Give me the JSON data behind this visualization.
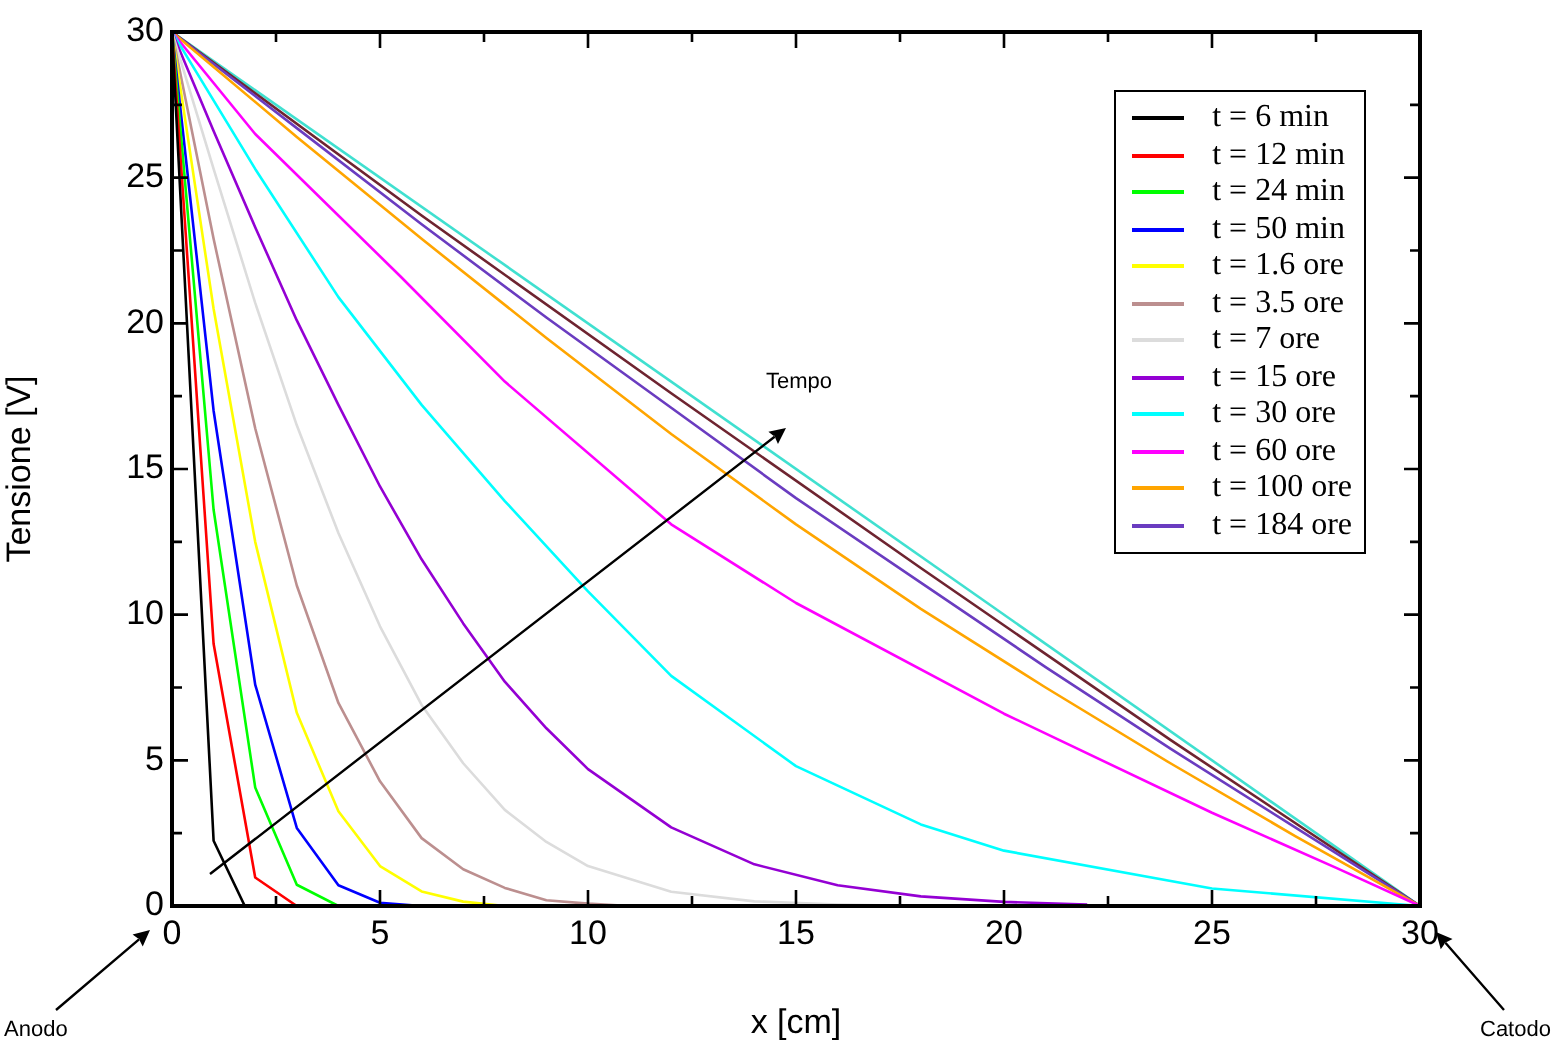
{
  "chart_data": {
    "type": "line",
    "xlabel": "x [cm]",
    "ylabel": "Tensione [V]",
    "xlim": [
      0,
      30
    ],
    "ylim": [
      0,
      30
    ],
    "xticks": [
      0,
      {
        "value": 2.5,
        "label": null
      },
      5,
      {
        "value": 7.5,
        "label": null
      },
      10,
      {
        "value": 12.5,
        "label": null
      },
      15,
      {
        "value": 17.5,
        "label": null
      },
      20,
      {
        "value": 22.5,
        "label": null
      },
      25,
      {
        "value": 27.5,
        "label": null
      },
      30
    ],
    "yticks": [
      0,
      {
        "value": 2.5,
        "label": null
      },
      5,
      {
        "value": 7.5,
        "label": null
      },
      10,
      {
        "value": 12.5,
        "label": null
      },
      15,
      {
        "value": 17.5,
        "label": null
      },
      20,
      {
        "value": 22.5,
        "label": null
      },
      25,
      {
        "value": 27.5,
        "label": null
      },
      30
    ],
    "grid": false,
    "legend": "top right",
    "marker": "none",
    "line_style": "solid",
    "annotations": [
      "Tempo",
      "Anodo",
      "Catodo"
    ],
    "series": [
      {
        "name": "t = 6 min",
        "color": "#000000",
        "x": [
          0,
          1,
          1.75
        ],
        "values": [
          30,
          2.24,
          0
        ]
      },
      {
        "name": "t = 12 min",
        "color": "#ff0000",
        "x": [
          0,
          1,
          2,
          3
        ],
        "values": [
          30,
          9.0,
          0.98,
          0
        ]
      },
      {
        "name": "t = 24 min",
        "color": "#00ff00",
        "x": [
          0,
          1,
          2,
          3,
          4
        ],
        "values": [
          30,
          13.6,
          4.07,
          0.73,
          0
        ]
      },
      {
        "name": "t = 50 min",
        "color": "#0000ff",
        "x": [
          0,
          1,
          2,
          3,
          4,
          5,
          6
        ],
        "values": [
          30,
          17.0,
          7.6,
          2.68,
          0.71,
          0.11,
          0
        ]
      },
      {
        "name": "t = 1.6 ore",
        "color": "#ffff00",
        "x": [
          0,
          1,
          2,
          3,
          4,
          5,
          6,
          7,
          8
        ],
        "values": [
          30,
          20.5,
          12.5,
          6.63,
          3.25,
          1.37,
          0.5,
          0.15,
          0
        ]
      },
      {
        "name": "t = 3.5 ore",
        "color": "#bc8f8f",
        "x": [
          0,
          1,
          2,
          3,
          4,
          5,
          6,
          7,
          8,
          9,
          10,
          11
        ],
        "values": [
          30,
          22.9,
          16.4,
          11.0,
          6.97,
          4.28,
          2.33,
          1.26,
          0.62,
          0.2,
          0.08,
          0
        ]
      },
      {
        "name": "t = 7 ore",
        "color": "#dcdcdc",
        "x": [
          0,
          1,
          2,
          3,
          4,
          5,
          6,
          7,
          8,
          9,
          10,
          12,
          14,
          16,
          18
        ],
        "values": [
          30,
          25.3,
          20.7,
          16.5,
          12.8,
          9.6,
          6.9,
          4.9,
          3.3,
          2.2,
          1.37,
          0.49,
          0.16,
          0.05,
          0
        ]
      },
      {
        "name": "t = 15 ore",
        "color": "#9400d3",
        "x": [
          0,
          1,
          2,
          3,
          4,
          5,
          6,
          7,
          8,
          9,
          10,
          12,
          14,
          16,
          18,
          20,
          22
        ],
        "values": [
          30,
          26.6,
          23.3,
          20.1,
          17.2,
          14.4,
          11.9,
          9.7,
          7.7,
          6.1,
          4.7,
          2.7,
          1.43,
          0.71,
          0.33,
          0.14,
          0.05
        ]
      },
      {
        "name": "t = 30 ore",
        "color": "#00ffff",
        "x": [
          0,
          2,
          4,
          6,
          8,
          10,
          12,
          15,
          18,
          20,
          25,
          30
        ],
        "values": [
          30,
          25.3,
          20.9,
          17.2,
          13.9,
          10.8,
          7.9,
          4.8,
          2.8,
          1.9,
          0.6,
          0
        ]
      },
      {
        "name": "t = 60 ore",
        "color": "#ff00ff",
        "x": [
          0,
          2,
          5.5,
          8,
          12,
          15,
          20,
          25,
          28,
          30
        ],
        "values": [
          30,
          26.5,
          21.6,
          18.0,
          13.1,
          10.4,
          6.6,
          3.2,
          1.3,
          0
        ]
      },
      {
        "name": "t = 100 ore",
        "color": "#ffa500",
        "x": [
          0,
          3,
          6,
          9,
          12,
          15,
          18,
          21,
          24,
          27,
          30
        ],
        "values": [
          30,
          26.4,
          22.9,
          19.5,
          16.2,
          13.1,
          10.2,
          7.5,
          4.9,
          2.4,
          0
        ]
      },
      {
        "name": "t = 184 ore",
        "color": "#6a3cc0",
        "x": [
          0,
          3,
          6,
          9,
          12,
          15,
          18,
          21,
          24,
          27,
          30
        ],
        "values": [
          30,
          26.7,
          23.4,
          20.2,
          17.1,
          14.0,
          11.1,
          8.2,
          5.4,
          2.7,
          0
        ]
      },
      {
        "color": "#6e2430",
        "x": [
          0,
          6,
          12,
          18,
          24,
          30
        ],
        "values": [
          30,
          23.7,
          17.6,
          11.6,
          5.7,
          0
        ]
      },
      {
        "color": "#40e0d0",
        "x": [
          0,
          30
        ],
        "values": [
          30,
          0
        ]
      }
    ]
  }
}
